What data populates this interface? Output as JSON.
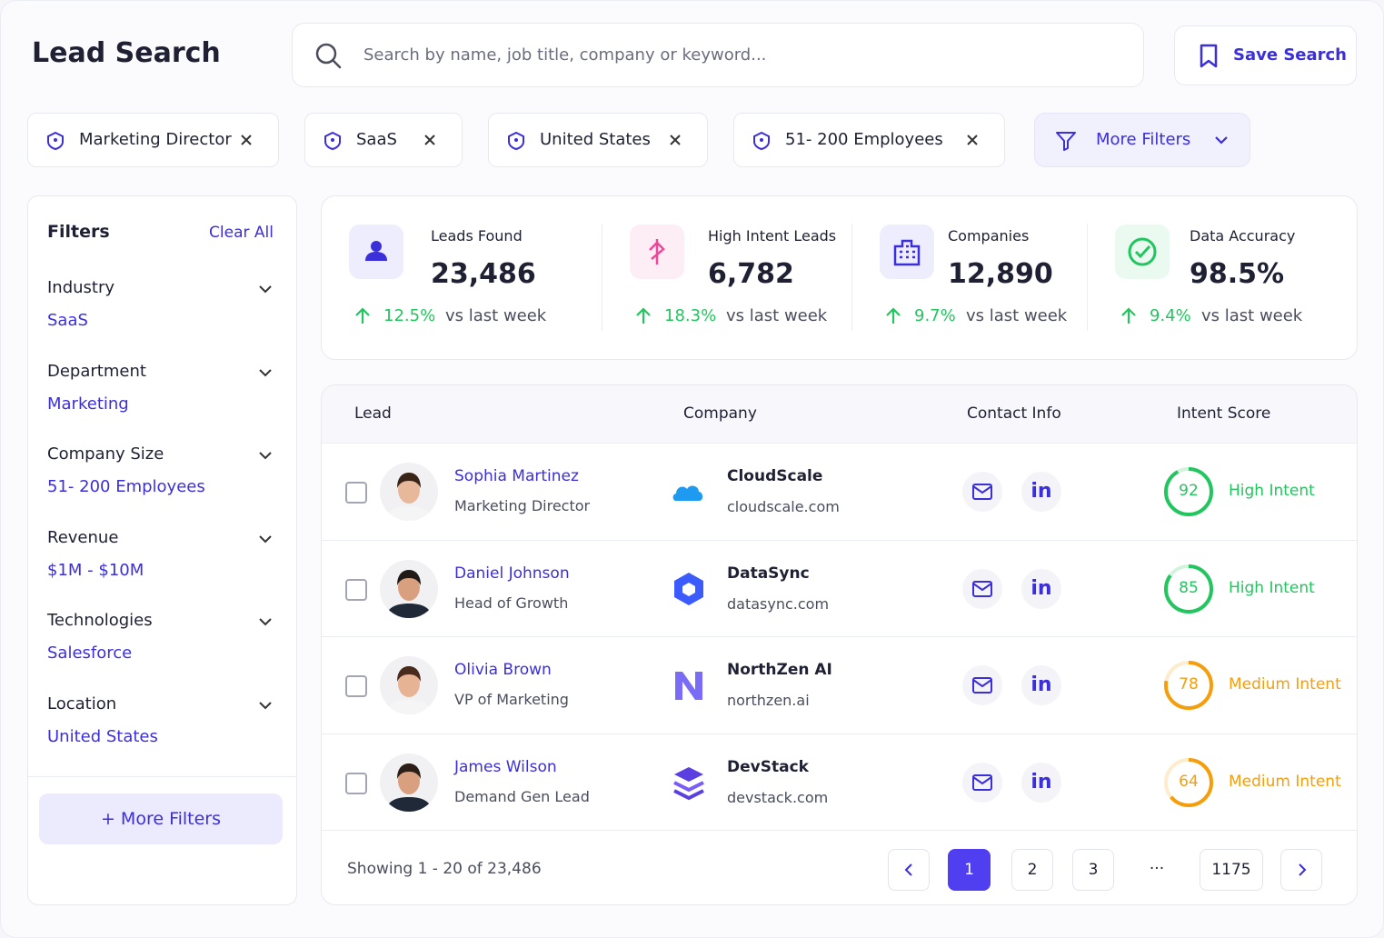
{
  "header": {
    "title": "Lead Search",
    "search_placeholder": "Search by name, job title, company or keyword...",
    "save_button": "Save Search"
  },
  "chips": [
    "Marketing Director",
    "SaaS",
    "United States",
    "51- 200 Employees"
  ],
  "more_filters_chip": "More Filters",
  "filters": {
    "title": "Filters",
    "clear": "Clear All",
    "groups": [
      {
        "label": "Industry",
        "value": "SaaS"
      },
      {
        "label": "Department",
        "value": "Marketing"
      },
      {
        "label": "Company Size",
        "value": "51- 200 Employees"
      },
      {
        "label": "Revenue",
        "value": "$1M - $10M"
      },
      {
        "label": "Technologies",
        "value": "Salesforce"
      },
      {
        "label": "Location",
        "value": "United States"
      }
    ],
    "more_button": "+ More Filters"
  },
  "stats": [
    {
      "label": "Leads Found",
      "value": "23,486",
      "change": "12.5%",
      "compare": "vs last week"
    },
    {
      "label": "High Intent Leads",
      "value": "6,782",
      "change": "18.3%",
      "compare": "vs last week"
    },
    {
      "label": "Companies",
      "value": "12,890",
      "change": "9.7%",
      "compare": "vs last week"
    },
    {
      "label": "Data Accuracy",
      "value": "98.5%",
      "change": "9.4%",
      "compare": "vs last week"
    }
  ],
  "table": {
    "columns": [
      "Lead",
      "Company",
      "Contact Info",
      "Intent Score"
    ],
    "linkedin_label": "in",
    "rows": [
      {
        "name": "Sophia Martinez",
        "title": "Marketing Director",
        "company": "CloudScale",
        "domain": "cloudscale.com",
        "score": 92,
        "intent": "High Intent",
        "color": "#22c55e"
      },
      {
        "name": "Daniel Johnson",
        "title": "Head of Growth",
        "company": "DataSync",
        "domain": "datasync.com",
        "score": 85,
        "intent": "High Intent",
        "color": "#22c55e"
      },
      {
        "name": "Olivia Brown",
        "title": "VP of Marketing",
        "company": "NorthZen AI",
        "domain": "northzen.ai",
        "score": 78,
        "intent": "Medium Intent",
        "color": "#f59e0b"
      },
      {
        "name": "James Wilson",
        "title": "Demand Gen Lead",
        "company": "DevStack",
        "domain": "devstack.com",
        "score": 64,
        "intent": "Medium Intent",
        "color": "#f59e0b"
      }
    ]
  },
  "pagination": {
    "showing": "Showing 1 - 20 of 23,486",
    "pages": [
      "1",
      "2",
      "3",
      "···",
      "1175"
    ]
  }
}
